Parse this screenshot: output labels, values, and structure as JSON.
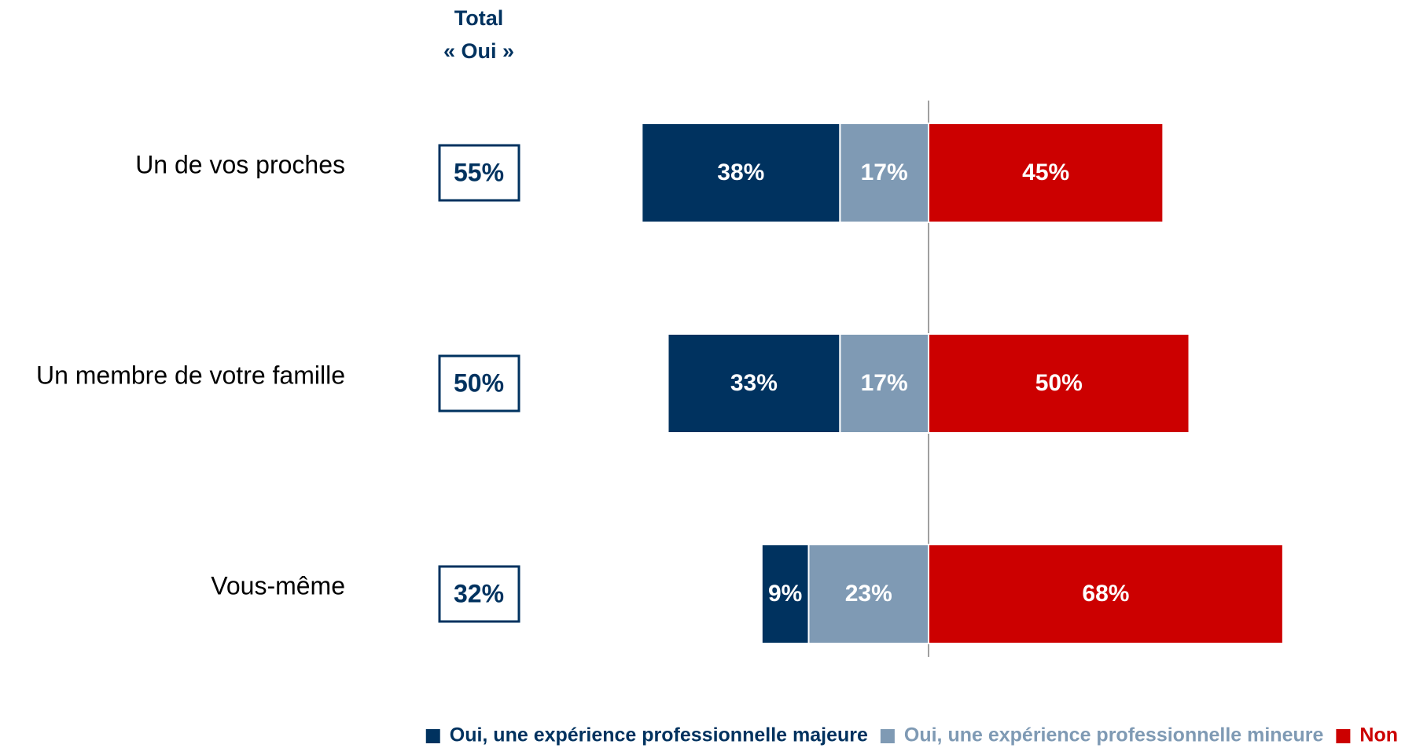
{
  "chart_data": {
    "type": "diverging_bar",
    "total_header": [
      "Total",
      "« Oui »"
    ],
    "categories": [
      "Un de vos proches",
      "Un membre de votre famille",
      "Vous-même"
    ],
    "total_values": [
      55,
      50,
      32
    ],
    "total_labels": [
      "55%",
      "50%",
      "32%"
    ],
    "series": [
      {
        "name": "Oui, une expérience professionnelle majeure",
        "color": "#00325f",
        "side": "left",
        "values": [
          38,
          33,
          9
        ],
        "value_labels": [
          "38%",
          "33%",
          "9%"
        ]
      },
      {
        "name": "Oui, une expérience professionnelle mineure",
        "color": "#7f9ab4",
        "side": "left",
        "values": [
          17,
          17,
          23
        ],
        "value_labels": [
          "17%",
          "17%",
          "23%"
        ]
      },
      {
        "name": "Non",
        "color": "#cc0000",
        "side": "right",
        "values": [
          45,
          50,
          68
        ],
        "value_labels": [
          "45%",
          "50%",
          "68%"
        ]
      }
    ]
  }
}
